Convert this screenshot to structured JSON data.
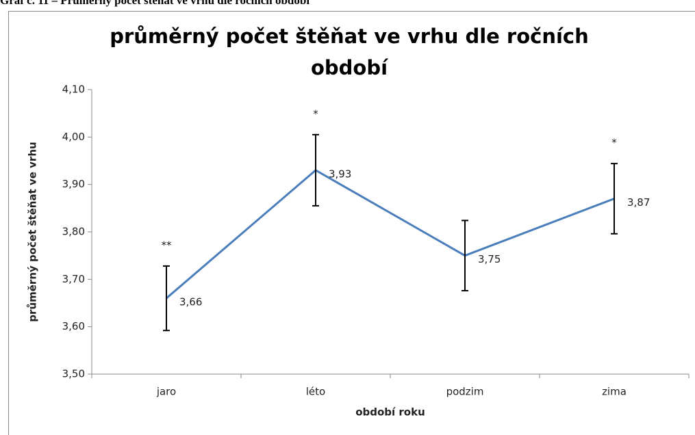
{
  "caption": "Graf č. 11 – Průměrný počet štěňat ve vrhu dle ročních období",
  "chart_data": {
    "type": "line",
    "title": "průměrný počet štěňat ve vrhu dle ročních období",
    "x_label": "období roku",
    "y_label": "průměrný počet štěňat ve vrhu",
    "categories": [
      "jaro",
      "léto",
      "podzim",
      "zima"
    ],
    "series": [
      {
        "name": "průměrný počet štěňat ve vrhu",
        "color": "#4a7ebb",
        "values": [
          3.66,
          3.93,
          3.75,
          3.87
        ],
        "value_labels": [
          "3,66",
          "3,93",
          "3,75",
          "3,87"
        ],
        "errors": [
          0.068,
          0.075,
          0.074,
          0.074
        ]
      }
    ],
    "annotations": [
      {
        "text": "**",
        "category": 0
      },
      {
        "text": "*",
        "category": 1
      },
      {
        "text": "*",
        "category": 3
      }
    ],
    "annotation_color": "#ff0000",
    "ylim": [
      3.5,
      4.1
    ],
    "yticks": [
      {
        "value": 3.5,
        "label": "3,50"
      },
      {
        "value": 3.6,
        "label": "3,60"
      },
      {
        "value": 3.7,
        "label": "3,70"
      },
      {
        "value": 3.8,
        "label": "3,80"
      },
      {
        "value": 3.9,
        "label": "3,90"
      },
      {
        "value": 4.0,
        "label": "4,00"
      },
      {
        "value": 4.1,
        "label": "4,10"
      }
    ],
    "grid": false
  }
}
